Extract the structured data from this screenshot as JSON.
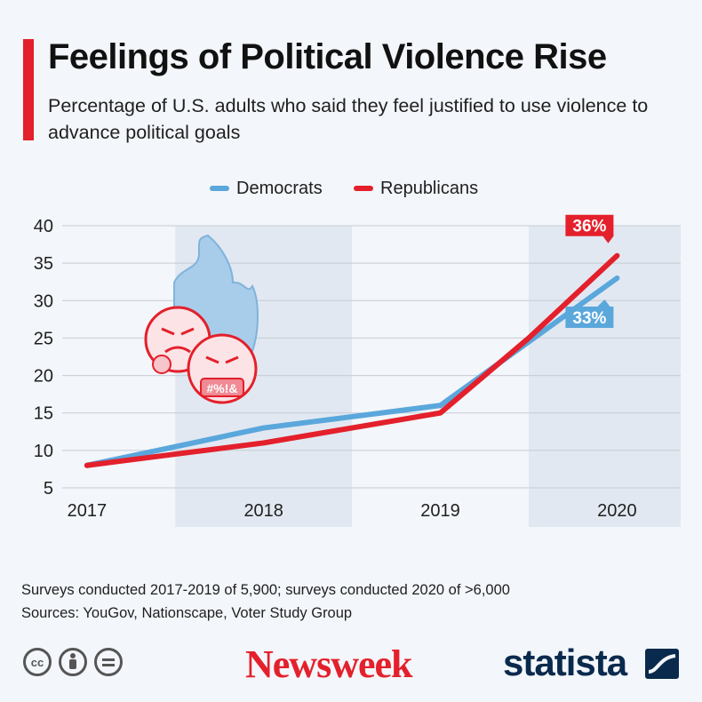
{
  "header": {
    "title": "Feelings of Political Violence Rise",
    "subtitle": "Percentage of U.S. adults who said they feel justified to use violence to advance political goals"
  },
  "colors": {
    "accent": "#e3202b",
    "democrats": "#5aa7dc",
    "republicans": "#e3202b",
    "shade": "#e2e8f1",
    "brand_navy": "#0a2a4d"
  },
  "chart_data": {
    "type": "line",
    "categories": [
      "2017",
      "2018",
      "2019",
      "2020"
    ],
    "x": [
      2017.0,
      2017.5,
      2018.0,
      2018.5,
      2019.0,
      2019.5,
      2020.0
    ],
    "xlim": [
      2016.86,
      2020.36
    ],
    "ylim": [
      5,
      40
    ],
    "yticks": [
      5,
      10,
      15,
      20,
      25,
      30,
      35,
      40
    ],
    "series": [
      {
        "name": "Democrats",
        "color": "#5aa7dc",
        "values": [
          8,
          10.5,
          13,
          14.5,
          16,
          24.5,
          33
        ],
        "end_label": "33%"
      },
      {
        "name": "Republicans",
        "color": "#e3202b",
        "values": [
          8,
          9.5,
          11,
          13,
          15,
          25,
          36
        ],
        "end_label": "36%"
      }
    ],
    "legend_position": "top-center",
    "grid": "horizontal",
    "shaded_categories": [
      "2018",
      "2020"
    ],
    "illustration_text": "#%!&"
  },
  "footer": {
    "note": "Surveys conducted 2017-2019 of 5,900; surveys conducted 2020 of >6,000",
    "sources": "Sources: YouGov, Nationscape, Voter Study Group",
    "license_icons": [
      "cc-icon",
      "by-icon",
      "nd-icon"
    ],
    "newsweek_logo": "Newsweek",
    "statista_logo": "statista"
  }
}
